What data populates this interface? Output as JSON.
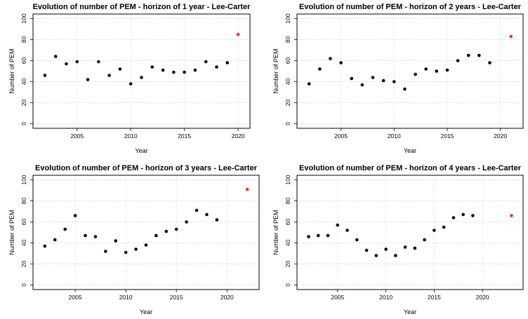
{
  "colors": {
    "observed": "#000000",
    "forecast": "#ff2a1a",
    "grid": "#d3d3d3"
  },
  "chart_data": [
    {
      "type": "scatter",
      "title": "Evolution of number of PEM - horizon of 1 year - Lee-Carter",
      "xlabel": "Year",
      "ylabel": "Number of PEM",
      "xlim": [
        2001.5,
        2020.5
      ],
      "ylim": [
        0,
        100
      ],
      "xticks": [
        2005,
        2010,
        2015,
        2020
      ],
      "yticks": [
        0,
        20,
        40,
        60,
        80,
        100
      ],
      "grid": true,
      "series": [
        {
          "x": [
            2002,
            2003,
            2004,
            2005,
            2006,
            2007,
            2008,
            2009,
            2010,
            2011,
            2012,
            2013,
            2014,
            2015,
            2016,
            2017,
            2018,
            2019
          ],
          "y": [
            46,
            64,
            57,
            59,
            42,
            59,
            46,
            52,
            38,
            44,
            54,
            51,
            49,
            49,
            51,
            59,
            54,
            58
          ],
          "color": "#000000"
        },
        {
          "x": [
            2020
          ],
          "y": [
            85
          ],
          "color": "#ff2a1a"
        }
      ]
    },
    {
      "type": "scatter",
      "title": "Evolution of number of PEM - horizon of 2 years - Lee-Carter",
      "xlabel": "Year",
      "ylabel": "Number of PEM",
      "xlim": [
        2001.5,
        2021.5
      ],
      "ylim": [
        0,
        100
      ],
      "xticks": [
        2005,
        2010,
        2015,
        2020
      ],
      "yticks": [
        0,
        20,
        40,
        60,
        80,
        100
      ],
      "grid": true,
      "series": [
        {
          "x": [
            2002,
            2003,
            2004,
            2005,
            2006,
            2007,
            2008,
            2009,
            2010,
            2011,
            2012,
            2013,
            2014,
            2015,
            2016,
            2017,
            2018,
            2019
          ],
          "y": [
            38,
            52,
            62,
            58,
            43,
            37,
            44,
            41,
            40,
            33,
            47,
            52,
            50,
            51,
            60,
            65,
            65,
            58
          ],
          "color": "#000000"
        },
        {
          "x": [
            2021
          ],
          "y": [
            83
          ],
          "color": "#ff2a1a"
        }
      ]
    },
    {
      "type": "scatter",
      "title": "Evolution of number of PEM - horizon of 3 years - Lee-Carter",
      "xlabel": "Year",
      "ylabel": "Number of PEM",
      "xlim": [
        2001.5,
        2022.5
      ],
      "ylim": [
        0,
        100
      ],
      "xticks": [
        2005,
        2010,
        2015,
        2020
      ],
      "yticks": [
        0,
        20,
        40,
        60,
        80,
        100
      ],
      "grid": true,
      "series": [
        {
          "x": [
            2002,
            2003,
            2004,
            2005,
            2006,
            2007,
            2008,
            2009,
            2010,
            2011,
            2012,
            2013,
            2014,
            2015,
            2016,
            2017,
            2018,
            2019
          ],
          "y": [
            37,
            43,
            53,
            66,
            47,
            46,
            32,
            42,
            31,
            34,
            38,
            47,
            51,
            53,
            60,
            71,
            67,
            62
          ],
          "color": "#000000"
        },
        {
          "x": [
            2022
          ],
          "y": [
            91
          ],
          "color": "#ff2a1a"
        }
      ]
    },
    {
      "type": "scatter",
      "title": "Evolution of number of PEM - horizon of 4 years - Lee-Carter",
      "xlabel": "Year",
      "ylabel": "Number of PEM",
      "xlim": [
        2001.5,
        2023.5
      ],
      "ylim": [
        0,
        100
      ],
      "xticks": [
        2005,
        2010,
        2015,
        2020
      ],
      "yticks": [
        0,
        20,
        40,
        60,
        80,
        100
      ],
      "grid": true,
      "series": [
        {
          "x": [
            2002,
            2003,
            2004,
            2005,
            2006,
            2007,
            2008,
            2009,
            2010,
            2011,
            2012,
            2013,
            2014,
            2015,
            2016,
            2017,
            2018,
            2019
          ],
          "y": [
            46,
            47,
            47,
            57,
            52,
            43,
            33,
            28,
            34,
            28,
            36,
            35,
            43,
            52,
            55,
            64,
            67,
            66
          ],
          "color": "#000000"
        },
        {
          "x": [
            2023
          ],
          "y": [
            66
          ],
          "color": "#ff2a1a"
        }
      ]
    }
  ]
}
